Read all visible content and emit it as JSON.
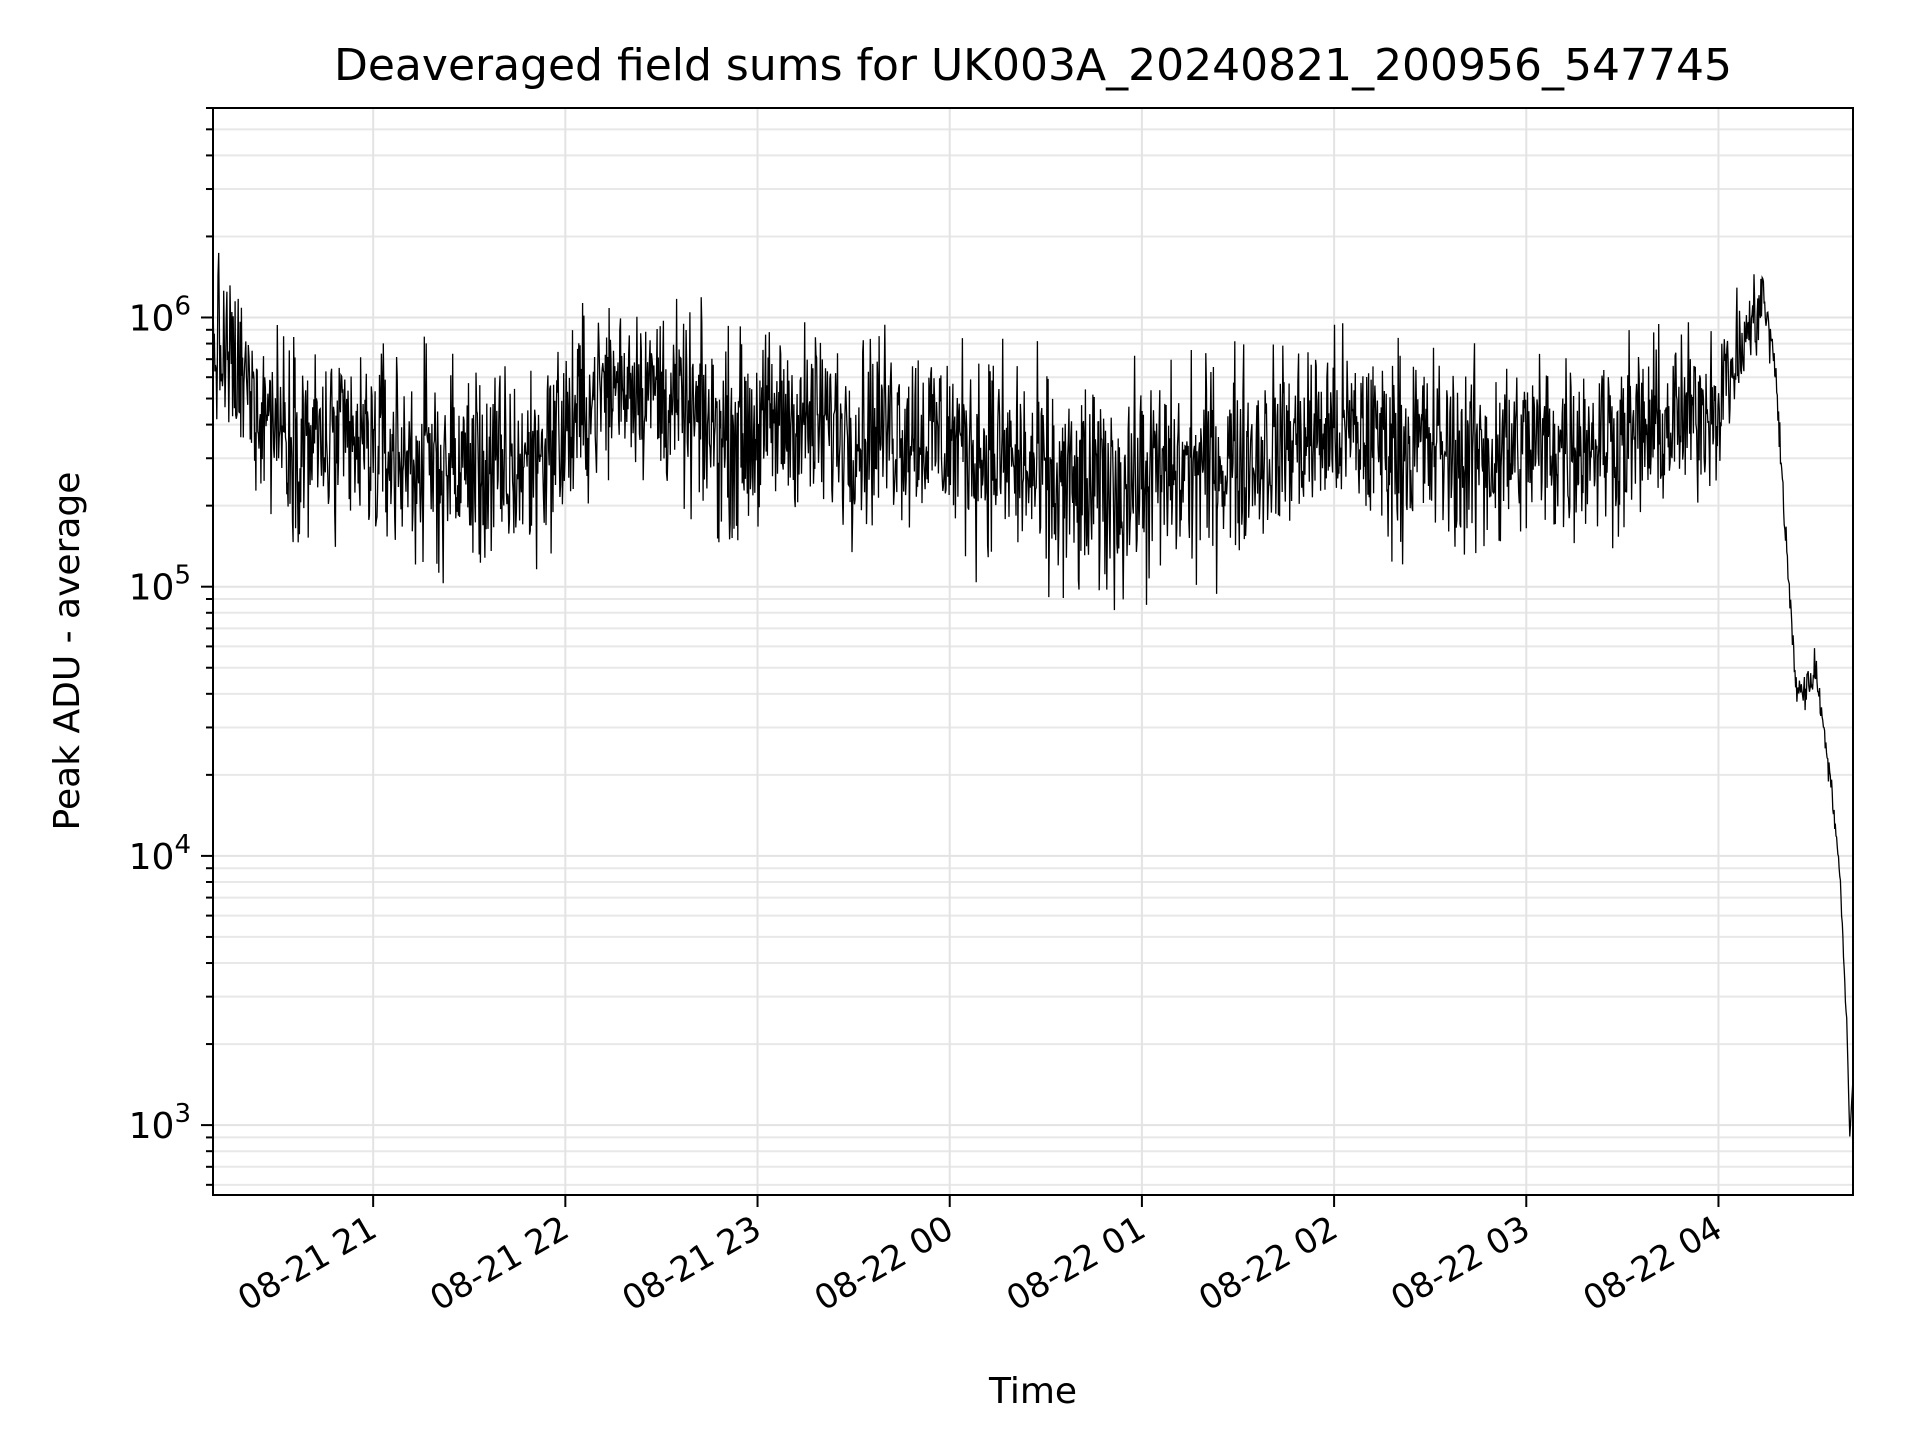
{
  "chart_data": {
    "type": "line",
    "title": "Deaveraged field sums for UK003A_20240821_200956_547745",
    "xlabel": "Time",
    "ylabel": "Peak ADU - average",
    "yscale": "log",
    "ylim": [
      550,
      6000000
    ],
    "xlim": [
      "2024-08-21 20:10",
      "2024-08-22 04:42"
    ],
    "grid": true,
    "legend": "none",
    "line_color": "#000000",
    "x_ticks": [
      {
        "label": "08-21 21",
        "value": "2024-08-21 21:00"
      },
      {
        "label": "08-21 22",
        "value": "2024-08-21 22:00"
      },
      {
        "label": "08-21 23",
        "value": "2024-08-21 23:00"
      },
      {
        "label": "08-22 00",
        "value": "2024-08-22 00:00"
      },
      {
        "label": "08-22 01",
        "value": "2024-08-22 01:00"
      },
      {
        "label": "08-22 02",
        "value": "2024-08-22 02:00"
      },
      {
        "label": "08-22 03",
        "value": "2024-08-22 03:00"
      },
      {
        "label": "08-22 04",
        "value": "2024-08-22 04:00"
      }
    ],
    "y_ticks": [
      {
        "base": "10",
        "exp": "3",
        "value": 1000
      },
      {
        "base": "10",
        "exp": "4",
        "value": 10000
      },
      {
        "base": "10",
        "exp": "5",
        "value": 100000
      },
      {
        "base": "10",
        "exp": "6",
        "value": 1000000
      }
    ],
    "series": [
      {
        "x": [
          "2024-08-21 20:10",
          "2024-08-21 20:20",
          "2024-08-21 20:30",
          "2024-08-21 20:40",
          "2024-08-21 20:50",
          "2024-08-21 21:00",
          "2024-08-21 21:10",
          "2024-08-21 21:20",
          "2024-08-21 21:30",
          "2024-08-21 21:40",
          "2024-08-21 21:50",
          "2024-08-21 22:00",
          "2024-08-21 22:10",
          "2024-08-21 22:20",
          "2024-08-21 22:30",
          "2024-08-21 22:40",
          "2024-08-21 22:50",
          "2024-08-21 23:00",
          "2024-08-21 23:10",
          "2024-08-21 23:20",
          "2024-08-21 23:30",
          "2024-08-21 23:40",
          "2024-08-21 23:50",
          "2024-08-22 00:00",
          "2024-08-22 00:10",
          "2024-08-22 00:20",
          "2024-08-22 00:30",
          "2024-08-22 00:40",
          "2024-08-22 00:50",
          "2024-08-22 01:00",
          "2024-08-22 01:10",
          "2024-08-22 01:20",
          "2024-08-22 01:30",
          "2024-08-22 01:40",
          "2024-08-22 01:50",
          "2024-08-22 02:00",
          "2024-08-22 02:10",
          "2024-08-22 02:20",
          "2024-08-22 02:30",
          "2024-08-22 02:40",
          "2024-08-22 02:50",
          "2024-08-22 03:00",
          "2024-08-22 03:10",
          "2024-08-22 03:20",
          "2024-08-22 03:30",
          "2024-08-22 03:40",
          "2024-08-22 03:50",
          "2024-08-22 04:00",
          "2024-08-22 04:08",
          "2024-08-22 04:14",
          "2024-08-22 04:18",
          "2024-08-22 04:21",
          "2024-08-22 04:24",
          "2024-08-22 04:27",
          "2024-08-22 04:30",
          "2024-08-22 04:33",
          "2024-08-22 04:36",
          "2024-08-22 04:38",
          "2024-08-22 04:40",
          "2024-08-22 04:41",
          "2024-08-22 04:42"
        ],
        "values": [
          800000,
          550000,
          420000,
          350000,
          320000,
          330000,
          300000,
          280000,
          280000,
          260000,
          300000,
          380000,
          520000,
          600000,
          520000,
          420000,
          360000,
          380000,
          420000,
          400000,
          380000,
          400000,
          380000,
          350000,
          320000,
          290000,
          240000,
          220000,
          230000,
          250000,
          260000,
          280000,
          300000,
          330000,
          360000,
          380000,
          360000,
          340000,
          330000,
          300000,
          310000,
          330000,
          340000,
          350000,
          360000,
          380000,
          420000,
          500000,
          800000,
          1200000,
          600000,
          150000,
          45000,
          40000,
          50000,
          30000,
          15000,
          8000,
          2500,
          900,
          1500
        ],
        "spread": [
          3.0,
          3.0,
          3.2,
          3.4,
          3.4,
          3.5,
          3.6,
          3.6,
          3.6,
          3.6,
          3.5,
          3.4,
          3.0,
          2.8,
          3.0,
          3.2,
          3.3,
          3.3,
          3.2,
          3.2,
          3.3,
          3.3,
          3.3,
          3.4,
          3.5,
          3.6,
          3.8,
          3.9,
          3.8,
          3.7,
          3.6,
          3.5,
          3.4,
          3.3,
          3.2,
          3.2,
          3.2,
          3.3,
          3.3,
          3.4,
          3.4,
          3.3,
          3.2,
          3.2,
          3.1,
          3.0,
          2.8,
          2.6,
          2.0,
          1.6,
          1.3,
          1.3,
          1.4,
          1.3,
          1.3,
          1.2,
          1.2,
          1.1,
          1.1,
          1.0,
          1.0
        ]
      }
    ]
  }
}
